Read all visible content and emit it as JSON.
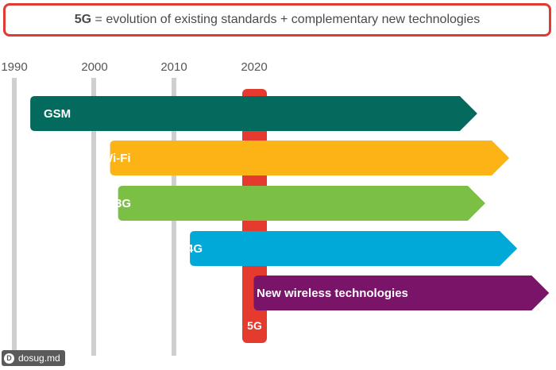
{
  "header": {
    "emphasis": "5G",
    "text": " = evolution of existing standards + complementary new technologies",
    "border_color": "#e03b32"
  },
  "timeline": {
    "years": [
      "1990",
      "2000",
      "2010",
      "2020"
    ]
  },
  "technologies": [
    {
      "label": "GSM",
      "color": "#046a5e",
      "start_year": 1992,
      "end_year": 2048
    },
    {
      "label": "Wi-Fi",
      "color": "#fcb316",
      "start_year": 2002,
      "end_year": 2052
    },
    {
      "label": "3G",
      "color": "#7bbf44",
      "start_year": 2003,
      "end_year": 2049
    },
    {
      "label": "4G",
      "color": "#01a9d8",
      "start_year": 2012,
      "end_year": 2053
    },
    {
      "label": "New wireless technologies",
      "color": "#7a1468",
      "start_year": 2020,
      "end_year": 2057
    }
  ],
  "highlight": {
    "label": "5G",
    "year": 2020,
    "color": "#e53a2e"
  },
  "watermark": {
    "text": "dosug.md",
    "logo": "D"
  }
}
